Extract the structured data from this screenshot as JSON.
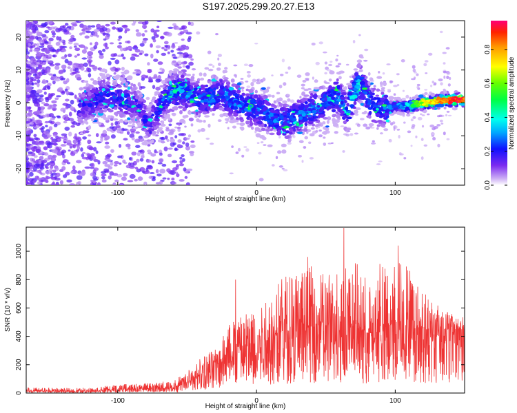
{
  "title": "S197.2025.299.20.27.E13",
  "chart_data": [
    {
      "type": "heatmap",
      "name": "spectrogram",
      "xlabel": "Height of straight line (km)",
      "ylabel": "Frequency (Hz)",
      "xlim": [
        -166,
        150
      ],
      "ylim": [
        -25,
        25
      ],
      "xticks": [
        -100,
        0,
        100
      ],
      "yticks": [
        -20,
        -10,
        0,
        10,
        20
      ],
      "colorbar": {
        "label": "Normalized spectral amplitude",
        "range": [
          0,
          0.97
        ],
        "ticks": [
          0.0,
          0.2,
          0.4,
          0.6,
          0.8
        ],
        "tick_labels": [
          "0.0",
          "0.2",
          "0.4",
          "0.6",
          "0.8"
        ]
      },
      "ridge": {
        "x": [
          -125,
          -110,
          -95,
          -85,
          -78,
          -65,
          -55,
          -40,
          -25,
          -10,
          0,
          10,
          20,
          30,
          40,
          50,
          58,
          62,
          65,
          70,
          75,
          78,
          82,
          90,
          100,
          110,
          120,
          130,
          140,
          150
        ],
        "freq": [
          -1,
          2,
          1,
          -1,
          -7,
          2,
          4,
          1,
          3,
          -1,
          -2,
          -4,
          -6,
          -4,
          -2,
          0,
          2,
          0,
          -4,
          3,
          6,
          4,
          0,
          -2,
          -1,
          -1,
          0,
          0.5,
          1,
          1
        ],
        "amp": [
          0.2,
          0.25,
          0.25,
          0.2,
          0.2,
          0.3,
          0.35,
          0.3,
          0.3,
          0.3,
          0.3,
          0.3,
          0.3,
          0.3,
          0.3,
          0.3,
          0.35,
          0.3,
          0.3,
          0.4,
          0.4,
          0.3,
          0.3,
          0.3,
          0.35,
          0.5,
          0.7,
          0.85,
          0.95,
          0.95
        ]
      }
    },
    {
      "type": "line",
      "name": "snr",
      "xlabel": "Height of straight line (km)",
      "ylabel": "SNR (10 * v/v)",
      "xlim": [
        -166,
        150
      ],
      "ylim": [
        0,
        1170
      ],
      "xticks": [
        -100,
        0,
        100
      ],
      "yticks": [
        0,
        200,
        400,
        600,
        800,
        1000
      ],
      "color": "#ee3333",
      "envelope": {
        "x": [
          -166,
          -140,
          -120,
          -100,
          -80,
          -60,
          -50,
          -40,
          -30,
          -20,
          -10,
          0,
          10,
          20,
          30,
          40,
          50,
          60,
          70,
          80,
          85,
          90,
          100,
          110,
          120,
          130,
          140,
          150
        ],
        "max": [
          40,
          35,
          40,
          60,
          70,
          90,
          150,
          260,
          330,
          500,
          600,
          640,
          720,
          850,
          880,
          900,
          840,
          900,
          950,
          820,
          760,
          900,
          1000,
          900,
          740,
          650,
          560,
          540
        ],
        "mean": [
          15,
          12,
          15,
          25,
          30,
          40,
          70,
          130,
          200,
          280,
          330,
          350,
          380,
          430,
          450,
          470,
          460,
          440,
          470,
          420,
          380,
          450,
          470,
          460,
          450,
          440,
          450,
          450
        ]
      },
      "peaks": [
        {
          "x": 63,
          "y": 1165
        },
        {
          "x": 102,
          "y": 1040
        },
        {
          "x": -15,
          "y": 800
        },
        {
          "x": 37,
          "y": 960
        },
        {
          "x": 89,
          "y": 910
        }
      ]
    }
  ]
}
